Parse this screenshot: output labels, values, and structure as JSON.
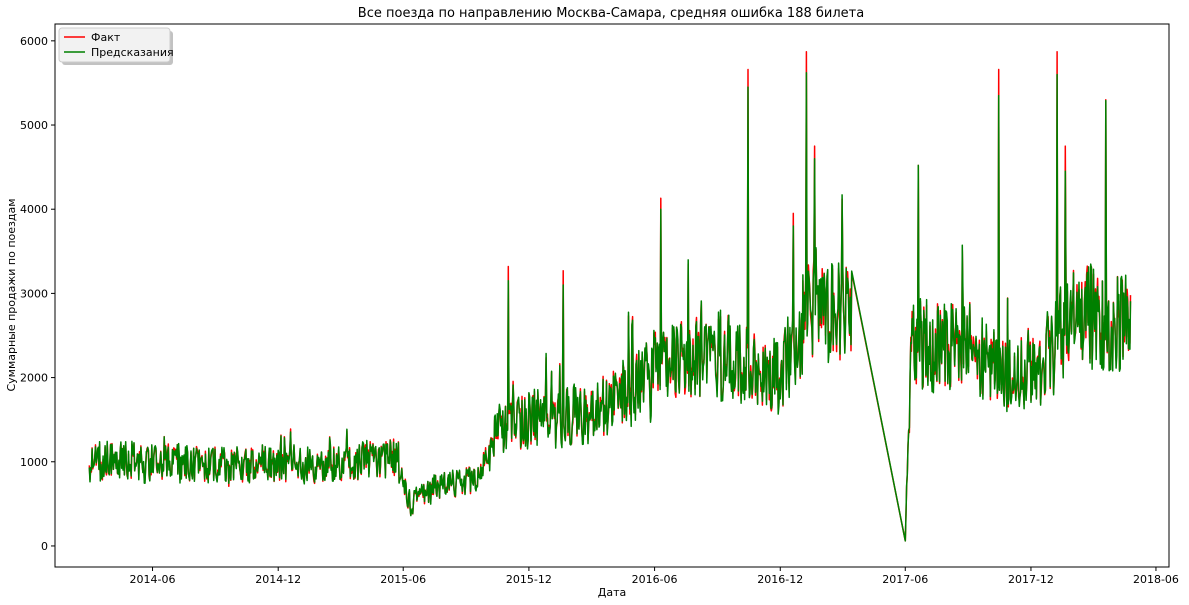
{
  "chart_data": {
    "type": "line",
    "title": "Все поезда по направлению Москва-Самара, средняя ошибка 188 билета",
    "xlabel": "Дата",
    "ylabel": "Суммарные продажи по поездам",
    "x_range": [
      "2014-01-10",
      "2018-06-20"
    ],
    "ylim": [
      -250,
      6200
    ],
    "x_ticks": [
      "2014-06",
      "2014-12",
      "2015-06",
      "2015-12",
      "2016-06",
      "2016-12",
      "2017-06",
      "2017-12",
      "2018-06"
    ],
    "y_ticks": [
      0,
      1000,
      2000,
      3000,
      4000,
      5000,
      6000
    ],
    "grid": false,
    "legend_position": "top-left",
    "data_start": "2014-03-01",
    "data_end": "2018-04-25",
    "gap": [
      "2017-03-15",
      "2017-06-01"
    ],
    "series": [
      {
        "name": "Факт",
        "color": "#ff0000",
        "anchors": [
          [
            "2014-03-01",
            1000
          ],
          [
            "2014-06-01",
            1000
          ],
          [
            "2014-12-01",
            950
          ],
          [
            "2015-02-01",
            950
          ],
          [
            "2015-05-20",
            1050
          ],
          [
            "2015-06-10",
            500
          ],
          [
            "2015-07-20",
            700
          ],
          [
            "2015-09-15",
            800
          ],
          [
            "2015-10-15",
            1350
          ],
          [
            "2015-12-01",
            1500
          ],
          [
            "2016-03-01",
            1550
          ],
          [
            "2016-06-01",
            2100
          ],
          [
            "2016-09-01",
            2300
          ],
          [
            "2016-12-01",
            2000
          ],
          [
            "2017-01-20",
            2900
          ],
          [
            "2017-03-15",
            2700
          ],
          [
            "2017-06-01",
            50
          ],
          [
            "2017-06-10",
            2400
          ],
          [
            "2017-09-01",
            2400
          ],
          [
            "2017-11-01",
            1950
          ],
          [
            "2017-12-20",
            2200
          ],
          [
            "2018-02-01",
            2800
          ],
          [
            "2018-04-25",
            2600
          ]
        ],
        "peaks": [
          [
            "2015-11-01",
            3320
          ],
          [
            "2016-01-20",
            3270
          ],
          [
            "2016-06-10",
            4130
          ],
          [
            "2016-10-15",
            5660
          ],
          [
            "2016-12-20",
            3950
          ],
          [
            "2017-01-08",
            5870
          ],
          [
            "2017-01-20",
            4750
          ],
          [
            "2017-06-20",
            4520
          ],
          [
            "2017-10-15",
            5660
          ],
          [
            "2018-01-08",
            5870
          ],
          [
            "2018-01-20",
            4750
          ],
          [
            "2018-03-20",
            5300
          ]
        ]
      },
      {
        "name": "Предсказания",
        "color": "#008000",
        "anchors": [
          [
            "2014-03-01",
            1000
          ],
          [
            "2014-06-01",
            1000
          ],
          [
            "2014-12-01",
            950
          ],
          [
            "2015-02-01",
            950
          ],
          [
            "2015-05-20",
            1050
          ],
          [
            "2015-06-10",
            500
          ],
          [
            "2015-07-20",
            700
          ],
          [
            "2015-09-15",
            800
          ],
          [
            "2015-10-15",
            1350
          ],
          [
            "2015-12-01",
            1500
          ],
          [
            "2016-03-01",
            1550
          ],
          [
            "2016-06-01",
            2100
          ],
          [
            "2016-09-01",
            2300
          ],
          [
            "2016-12-01",
            2000
          ],
          [
            "2017-01-20",
            2900
          ],
          [
            "2017-03-15",
            2700
          ],
          [
            "2017-06-01",
            50
          ],
          [
            "2017-06-10",
            2400
          ],
          [
            "2017-09-01",
            2400
          ],
          [
            "2017-11-01",
            1950
          ],
          [
            "2017-12-20",
            2200
          ],
          [
            "2018-02-01",
            2800
          ],
          [
            "2018-04-25",
            2600
          ]
        ],
        "peaks": [
          [
            "2015-11-01",
            3150
          ],
          [
            "2016-01-20",
            3100
          ],
          [
            "2016-06-10",
            4000
          ],
          [
            "2016-10-15",
            5450
          ],
          [
            "2016-12-20",
            3800
          ],
          [
            "2017-01-08",
            5620
          ],
          [
            "2017-01-20",
            4600
          ],
          [
            "2017-06-20",
            4520
          ],
          [
            "2017-10-15",
            5350
          ],
          [
            "2018-01-08",
            5600
          ],
          [
            "2018-01-20",
            4450
          ],
          [
            "2018-03-20",
            5290
          ]
        ]
      }
    ]
  }
}
